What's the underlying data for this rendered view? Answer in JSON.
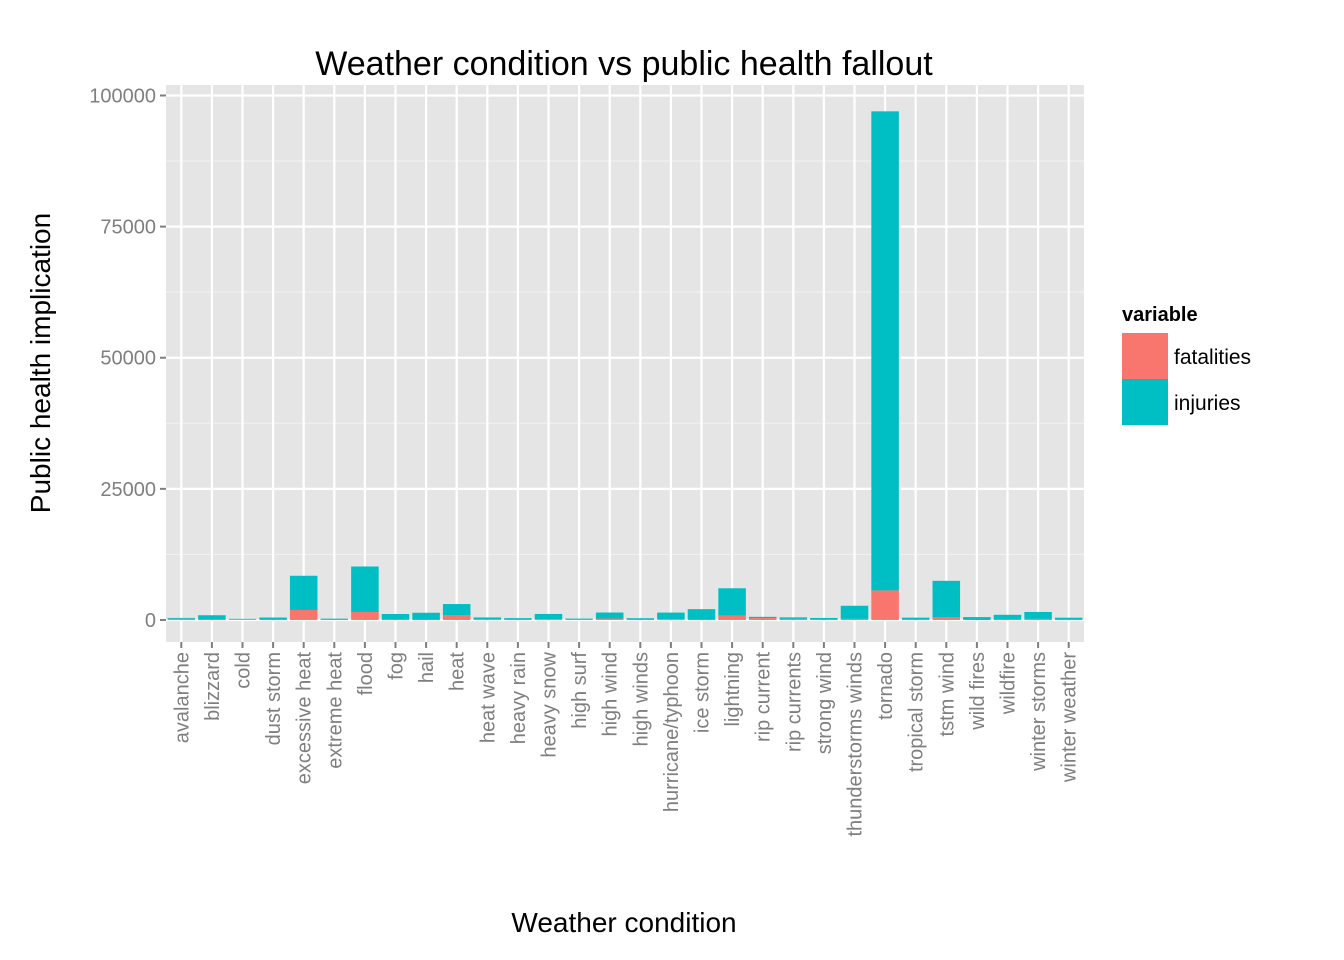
{
  "chart_data": {
    "type": "bar",
    "stacked": true,
    "title": "Weather condition vs public health fallout",
    "xlabel": "Weather condition",
    "ylabel": "Public health implication",
    "ylim": [
      -4200,
      102000
    ],
    "yticks": [
      0,
      25000,
      50000,
      75000,
      100000
    ],
    "yticks_minor": [
      12500,
      37500,
      62500,
      87500
    ],
    "grid": true,
    "legend": {
      "title": "variable",
      "position": "right"
    },
    "categories": [
      "avalanche",
      "blizzard",
      "cold",
      "dust storm",
      "excessive heat",
      "extreme heat",
      "flood",
      "fog",
      "hail",
      "heat",
      "heat wave",
      "heavy rain",
      "heavy snow",
      "high surf",
      "high wind",
      "high winds",
      "hurricane/typhoon",
      "ice storm",
      "lightning",
      "rip current",
      "rip currents",
      "strong wind",
      "thunderstorms winds",
      "tornado",
      "tropical storm",
      "tstm wind",
      "wild fires",
      "wildfire",
      "winter storms",
      "winter weather"
    ],
    "series": [
      {
        "name": "fatalities",
        "color": "#F8766D",
        "values": [
          224,
          101,
          160,
          24,
          1903,
          96,
          1524,
          62,
          15,
          937,
          172,
          98,
          127,
          104,
          283,
          34,
          135,
          89,
          816,
          368,
          204,
          103,
          209,
          5633,
          58,
          504,
          3,
          75,
          206,
          33
        ]
      },
      {
        "name": "injuries",
        "color": "#00BFC4",
        "values": [
          170,
          805,
          60,
          440,
          6525,
          155,
          8674,
          1076,
          1361,
          2100,
          309,
          251,
          1021,
          156,
          1137,
          302,
          1275,
          1975,
          5230,
          232,
          297,
          280,
          2500,
          91346,
          383,
          6957,
          545,
          911,
          1321,
          398
        ]
      }
    ],
    "colors": {
      "panel": "#E5E5E5",
      "grid_major": "#FFFFFF",
      "grid_minor": "#F2F2F2",
      "tick_text": "#7F7F7F"
    }
  }
}
